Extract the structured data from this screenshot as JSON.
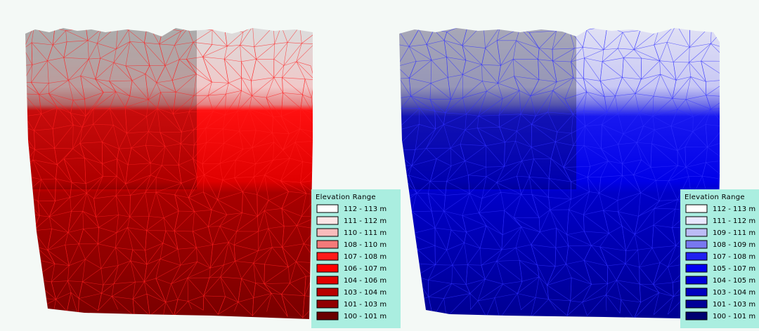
{
  "panels": [
    {
      "legend": {
        "title": "Elevation Range",
        "items": [
          {
            "label": "112 - 113 m",
            "color": "#ffffff"
          },
          {
            "label": "111 - 112 m",
            "color": "#fde6e6"
          },
          {
            "label": "110 - 111 m",
            "color": "#f9bcbc"
          },
          {
            "label": "108 - 110 m",
            "color": "#f47a7a"
          },
          {
            "label": "107 - 108 m",
            "color": "#ff1a1a"
          },
          {
            "label": "106 - 107 m",
            "color": "#ff0000"
          },
          {
            "label": "104 - 106 m",
            "color": "#e00000"
          },
          {
            "label": "103 - 104 m",
            "color": "#b80000"
          },
          {
            "label": "101 - 103 m",
            "color": "#900000"
          },
          {
            "label": "100 - 101 m",
            "color": "#6a0000"
          }
        ]
      }
    },
    {
      "legend": {
        "title": "Elevation Range",
        "items": [
          {
            "label": "112 - 113 m",
            "color": "#ffffff"
          },
          {
            "label": "111 - 112 m",
            "color": "#e8e8ff"
          },
          {
            "label": "109 - 111 m",
            "color": "#bcbcf6"
          },
          {
            "label": "108 - 109 m",
            "color": "#7878f0"
          },
          {
            "label": "107 - 108 m",
            "color": "#2020f0"
          },
          {
            "label": "105 - 107 m",
            "color": "#0000f0"
          },
          {
            "label": "104 - 105 m",
            "color": "#0000d8"
          },
          {
            "label": "103 - 104 m",
            "color": "#0000c0"
          },
          {
            "label": "101 - 103 m",
            "color": "#000098"
          },
          {
            "label": "100 - 101 m",
            "color": "#000070"
          }
        ]
      }
    }
  ]
}
